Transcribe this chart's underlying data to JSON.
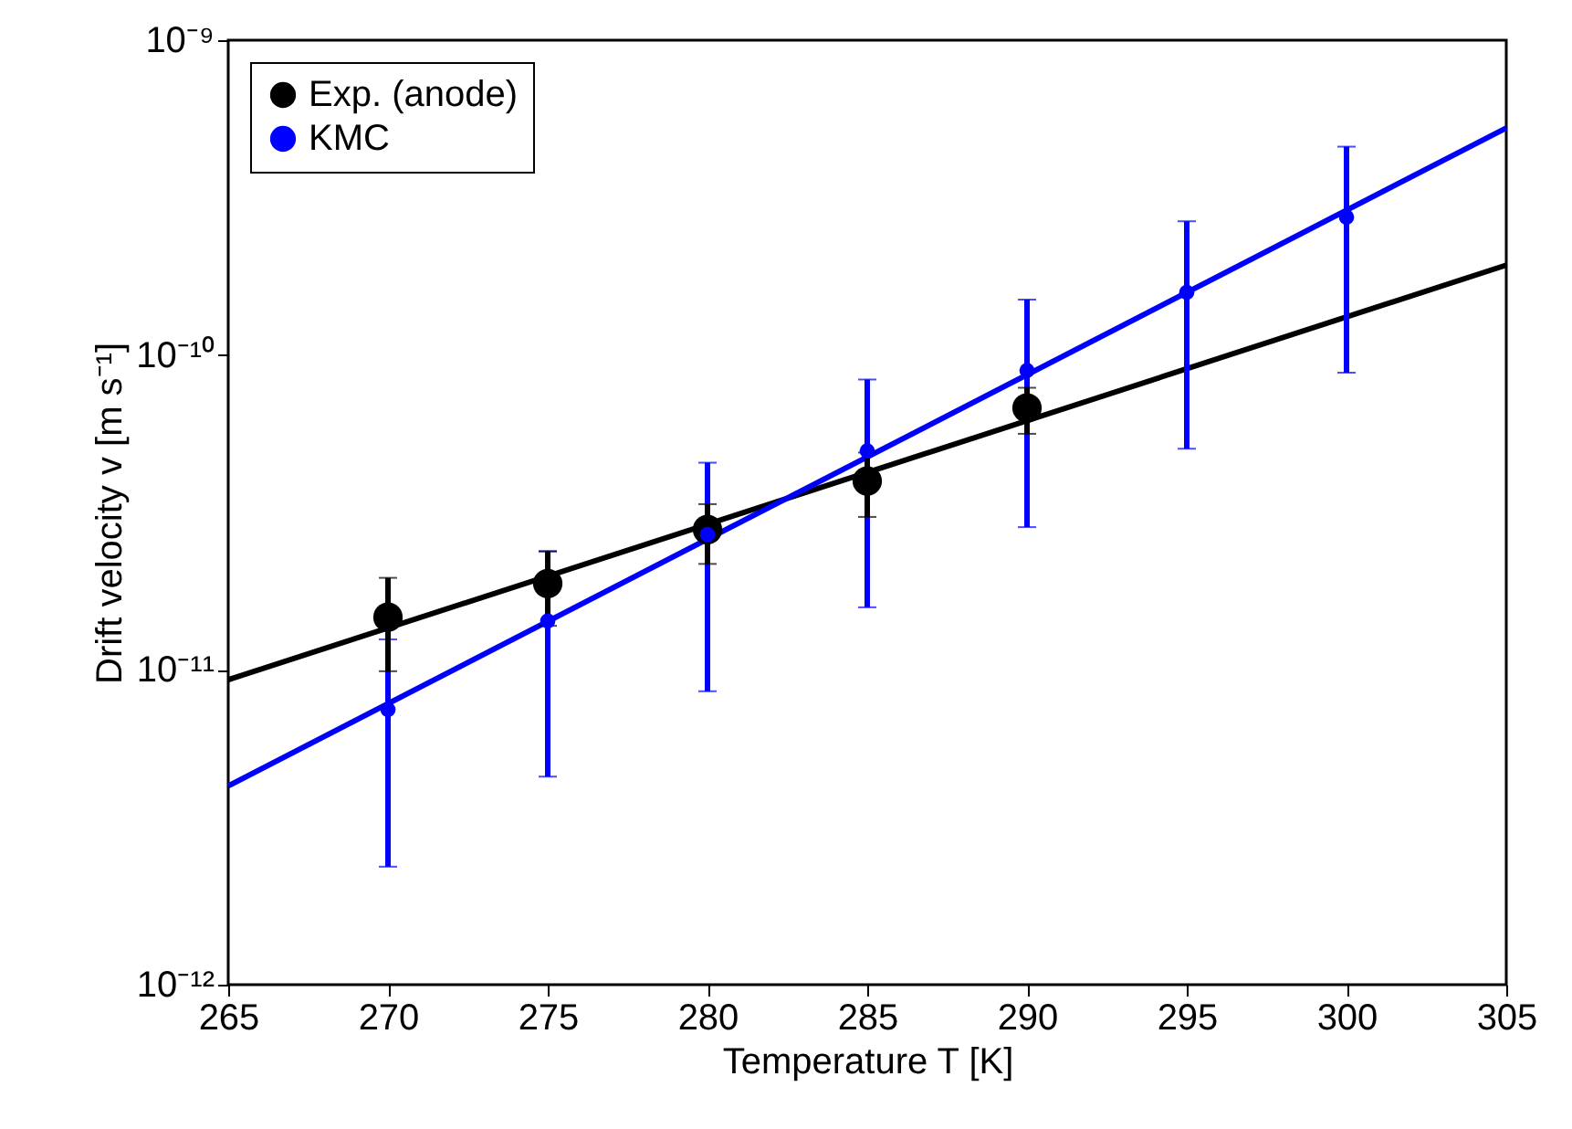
{
  "chart_data": {
    "type": "scatter",
    "xlabel": "Temperature T [K]",
    "ylabel": "Drift velocity v [m s⁻¹]",
    "log": "y",
    "xlim": [
      265,
      305
    ],
    "xticks": [
      265,
      270,
      275,
      280,
      285,
      290,
      295,
      300,
      305
    ],
    "ylim": [
      1e-12,
      1e-09
    ],
    "yticks": [
      {
        "value": 1e-12,
        "label": "10⁻¹²"
      },
      {
        "value": 1e-11,
        "label": "10⁻¹¹"
      },
      {
        "value": 1e-10,
        "label": "10⁻¹⁰"
      },
      {
        "value": 1e-09,
        "label": "10⁻⁹"
      }
    ],
    "marker": "circle",
    "legend": "top left",
    "grid": false,
    "series": [
      {
        "name": "Exp. (anode)",
        "color": "#000000",
        "x": [
          270,
          275,
          280,
          285,
          290
        ],
        "values": [
          1.47e-11,
          1.88e-11,
          2.79e-11,
          3.98e-11,
          6.79e-11
        ],
        "errors": [
          [
            9.9e-12,
            1.96e-11
          ],
          [
            1.38e-11,
            2.38e-11
          ],
          [
            2.17e-11,
            3.36e-11
          ],
          [
            3.06e-11,
            4.9e-11
          ],
          [
            5.62e-11,
            7.87e-11
          ]
        ]
      },
      {
        "name": "KMC",
        "color": "#0000ff",
        "x": [
          270,
          275,
          280,
          285,
          290,
          295,
          300
        ],
        "values": [
          7.48e-12,
          1.43e-11,
          2.69e-11,
          4.96e-11,
          8.93e-11,
          1.58e-10,
          2.74e-10
        ],
        "errors": [
          [
            2.37e-12,
            1.25e-11
          ],
          [
            4.58e-12,
            2.38e-11
          ],
          [
            8.55e-12,
            4.55e-11
          ],
          [
            1.58e-11,
            8.36e-11
          ],
          [
            2.84e-11,
            1.5e-10
          ],
          [
            5.04e-11,
            2.66e-10
          ],
          [
            8.79e-11,
            4.59e-10
          ]
        ]
      },
      {
        "type": "line",
        "marker": "none",
        "color": "#000000",
        "x": [
          265,
          305
        ],
        "values": [
          9.3e-12,
          1.93e-10
        ]
      },
      {
        "type": "line",
        "marker": "none",
        "color": "#0000ff",
        "x": [
          265,
          305
        ],
        "values": [
          4.28e-12,
          5.26e-10
        ]
      }
    ]
  }
}
